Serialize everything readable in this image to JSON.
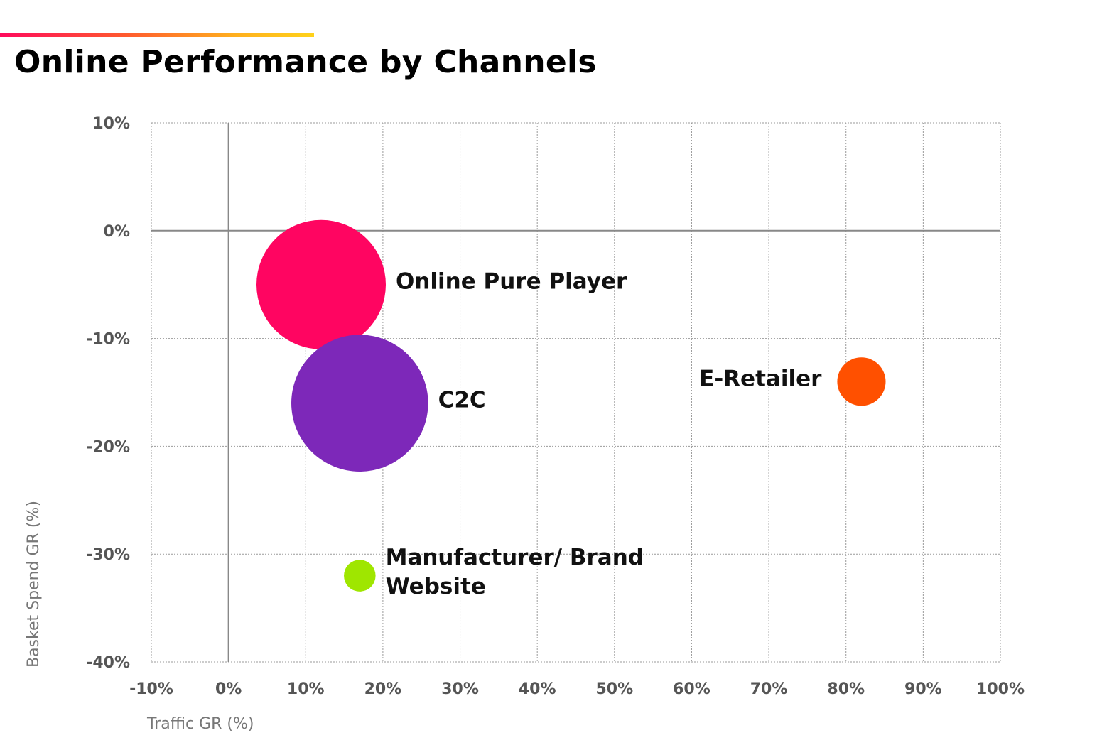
{
  "header": {
    "title": "Online Performance by Channels"
  },
  "chart_data": {
    "type": "scatter",
    "title": "Online Performance by Channels",
    "xlabel": "Traffic GR (%)",
    "ylabel": "Basket Spend GR (%)",
    "xlim": [
      -10,
      100
    ],
    "ylim": [
      -40,
      10
    ],
    "x_ticks": [
      -10,
      0,
      10,
      20,
      30,
      40,
      50,
      60,
      70,
      80,
      90,
      100
    ],
    "x_tick_labels": [
      "-10%",
      "0%",
      "10%",
      "20%",
      "30%",
      "40%",
      "50%",
      "60%",
      "70%",
      "80%",
      "90%",
      "100%"
    ],
    "y_ticks": [
      10,
      0,
      -10,
      -20,
      -30,
      -40
    ],
    "y_tick_labels": [
      "10%",
      "0%",
      "-10%",
      "-20%",
      "-30%",
      "-40%"
    ],
    "grid": true,
    "bubble_size_scale": "relative",
    "points": [
      {
        "label": "Online Pure Player",
        "label_lines": [
          "Online Pure Player"
        ],
        "x": 12,
        "y": -5,
        "size": 1.0,
        "color": "#ff0561"
      },
      {
        "label": "C2C",
        "label_lines": [
          "C2C"
        ],
        "x": 17,
        "y": -16,
        "size": 1.12,
        "color": "#7d28b9"
      },
      {
        "label": "E-Retailer",
        "label_lines": [
          "E-Retailer"
        ],
        "x": 82,
        "y": -14,
        "size": 0.14,
        "color": "#ff5000"
      },
      {
        "label": "Manufacturer/ Brand Website",
        "label_lines": [
          "Manufacturer/ Brand",
          "Website"
        ],
        "x": 17,
        "y": -32,
        "size": 0.06,
        "color": "#9fe600"
      }
    ]
  }
}
